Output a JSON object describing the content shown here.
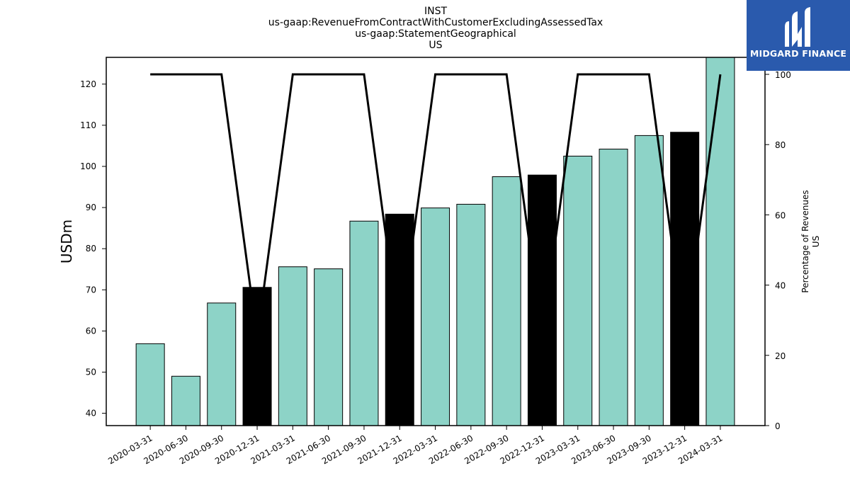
{
  "brand": {
    "name": "MIDGARD FINANCE",
    "bg_color": "#2a5aad"
  },
  "chart_data": {
    "type": "bar",
    "title_lines": [
      "INST",
      "us-gaap:RevenueFromContractWithCustomerExcludingAssessedTax",
      "us-gaap:StatementGeographical",
      "US"
    ],
    "ylabel": "USDm",
    "y2label_lines": [
      "Percentage of Revenues",
      "US"
    ],
    "categories": [
      "2020-03-31",
      "2020-06-30",
      "2020-09-30",
      "2020-12-31",
      "2021-03-31",
      "2021-06-30",
      "2021-09-30",
      "2021-12-31",
      "2022-03-31",
      "2022-06-30",
      "2022-09-30",
      "2022-12-31",
      "2023-03-31",
      "2023-06-30",
      "2023-09-30",
      "2023-12-31",
      "2024-03-31"
    ],
    "series": [
      {
        "kind": "bar",
        "values": [
          56.9,
          49.0,
          66.8,
          70.6,
          75.6,
          75.1,
          86.7,
          88.4,
          89.9,
          90.8,
          97.5,
          97.9,
          102.5,
          104.2,
          107.5,
          108.3,
          126.5
        ],
        "highlight_indices": [
          3,
          7,
          11,
          15
        ],
        "color": "#8dd3c7",
        "highlight_color": "#000000"
      },
      {
        "kind": "line",
        "axis": "right",
        "values": [
          100,
          100,
          100,
          25,
          100,
          100,
          100,
          25,
          100,
          100,
          100,
          25,
          100,
          100,
          100,
          25,
          100
        ],
        "color": "#000000"
      }
    ],
    "ylim": [
      37,
      126.5
    ],
    "yticks": [
      40,
      50,
      60,
      70,
      80,
      90,
      100,
      110,
      120
    ],
    "y2lim": [
      0,
      100.0
    ],
    "y2ticks": [
      0,
      20,
      40,
      60,
      80,
      100
    ],
    "grid": false
  }
}
